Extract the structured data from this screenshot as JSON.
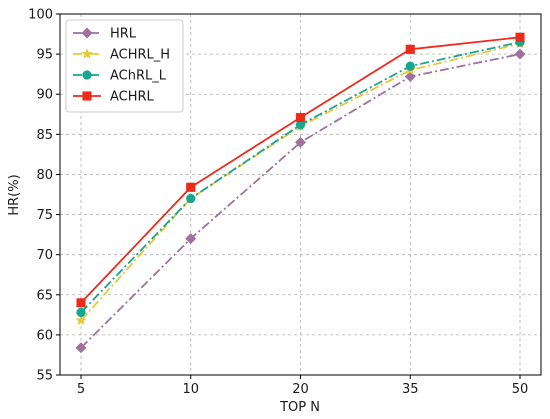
{
  "chart_data": {
    "type": "line",
    "title": "",
    "xlabel": "TOP N",
    "ylabel": "HR(%)",
    "categories": [
      "5",
      "10",
      "20",
      "35",
      "50"
    ],
    "ylim": [
      55,
      100
    ],
    "yticks": [
      "55",
      "60",
      "65",
      "70",
      "75",
      "80",
      "85",
      "90",
      "95",
      "100"
    ],
    "grid": true,
    "legend_position": "top-left",
    "series": [
      {
        "name": "HRL",
        "values": [
          58.4,
          72.0,
          84.0,
          92.2,
          95.0
        ],
        "color": "#a0709f",
        "linestyle": "dashdot",
        "marker": "diamond"
      },
      {
        "name": "ACHRL_H",
        "values": [
          61.8,
          77.0,
          86.0,
          93.0,
          96.3
        ],
        "color": "#e8c93a",
        "linestyle": "dashdot",
        "marker": "star"
      },
      {
        "name": "AChRL_L",
        "values": [
          62.8,
          77.0,
          86.2,
          93.5,
          96.5
        ],
        "color": "#17a68f",
        "linestyle": "dashdot",
        "marker": "circle"
      },
      {
        "name": "ACHRL",
        "values": [
          64.0,
          78.4,
          87.1,
          95.6,
          97.1
        ],
        "color": "#ee2b1b",
        "linestyle": "solid",
        "marker": "square"
      }
    ]
  }
}
